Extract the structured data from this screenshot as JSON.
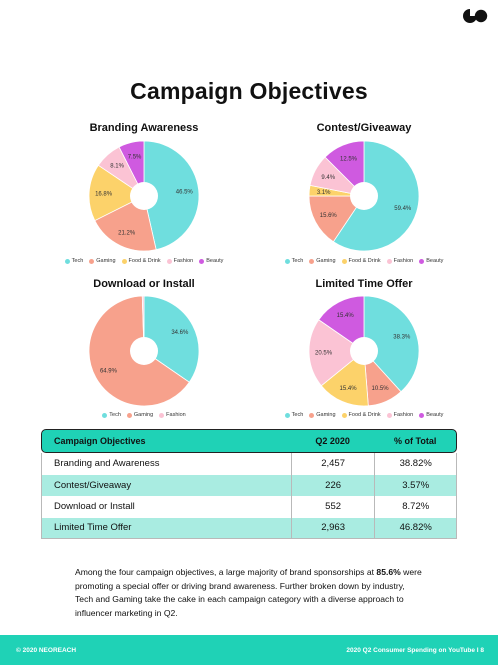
{
  "title": "Campaign Objectives",
  "colors": {
    "Tech": "#6fdede",
    "Gaming": "#f7a18c",
    "Food & Drink": "#fcd26a",
    "Fashion": "#fbc3d4",
    "Beauty": "#cf5ae0",
    "accent": "#1fd2b6",
    "alt_row": "#a9ece1"
  },
  "chart_data": [
    {
      "type": "pie",
      "title": "Branding Awareness",
      "slices": [
        {
          "name": "Tech",
          "value": 46.5,
          "label": "46.5%"
        },
        {
          "name": "Gaming",
          "value": 21.2,
          "label": "21.2%"
        },
        {
          "name": "Food & Drink",
          "value": 16.8,
          "label": "16.8%"
        },
        {
          "name": "Fashion",
          "value": 8.1,
          "label": "8.1%"
        },
        {
          "name": "Beauty",
          "value": 7.5,
          "label": "7.5%"
        }
      ],
      "legend": [
        "Tech",
        "Gaming",
        "Food & Drink",
        "Fashion",
        "Beauty"
      ]
    },
    {
      "type": "pie",
      "title": "Contest/Giveaway",
      "slices": [
        {
          "name": "Tech",
          "value": 59.4,
          "label": "59.4%"
        },
        {
          "name": "Gaming",
          "value": 15.6,
          "label": "15.6%"
        },
        {
          "name": "Food & Drink",
          "value": 3.1,
          "label": "3.1%"
        },
        {
          "name": "Fashion",
          "value": 9.4,
          "label": "9.4%"
        },
        {
          "name": "Beauty",
          "value": 12.5,
          "label": "12.5%"
        }
      ],
      "legend": [
        "Tech",
        "Gaming",
        "Food & Drink",
        "Fashion",
        "Beauty"
      ]
    },
    {
      "type": "pie",
      "title": "Download or Install",
      "slices": [
        {
          "name": "Tech",
          "value": 34.6,
          "label": "34.6%"
        },
        {
          "name": "Gaming",
          "value": 64.9,
          "label": "64.9%"
        },
        {
          "name": "Fashion",
          "value": 0.5,
          "label": ""
        }
      ],
      "legend": [
        "Tech",
        "Gaming",
        "Fashion"
      ]
    },
    {
      "type": "pie",
      "title": "Limited Time Offer",
      "slices": [
        {
          "name": "Tech",
          "value": 38.3,
          "label": "38.3%"
        },
        {
          "name": "Gaming",
          "value": 10.5,
          "label": "10.5%"
        },
        {
          "name": "Food & Drink",
          "value": 15.4,
          "label": "15.4%"
        },
        {
          "name": "Fashion",
          "value": 20.5,
          "label": "20.5%"
        },
        {
          "name": "Beauty",
          "value": 15.4,
          "label": "15.4%"
        }
      ],
      "legend": [
        "Tech",
        "Gaming",
        "Food & Drink",
        "Fashion",
        "Beauty"
      ]
    }
  ],
  "table": {
    "headers": [
      "Campaign Objectives",
      "Q2 2020",
      "% of Total"
    ],
    "rows": [
      [
        "Branding and Awareness",
        "2,457",
        "38.82%"
      ],
      [
        "Contest/Giveaway",
        "226",
        "3.57%"
      ],
      [
        "Download or Install",
        "552",
        "8.72%"
      ],
      [
        "Limited Time Offer",
        "2,963",
        "46.82%"
      ]
    ]
  },
  "summary": {
    "part1": "Among the four campaign objectives, a large majority of brand sponsorships at ",
    "bold": "85.6%",
    "part2": " were promoting a special offer or driving brand awareness. Further broken down by industry, Tech and Gaming take the cake in each campaign category with a diverse approach to influencer marketing in Q2."
  },
  "footer": {
    "left": "© 2020 NEOREACH",
    "right": "2020 Q2 Consumer Spending on YouTube I 8"
  }
}
